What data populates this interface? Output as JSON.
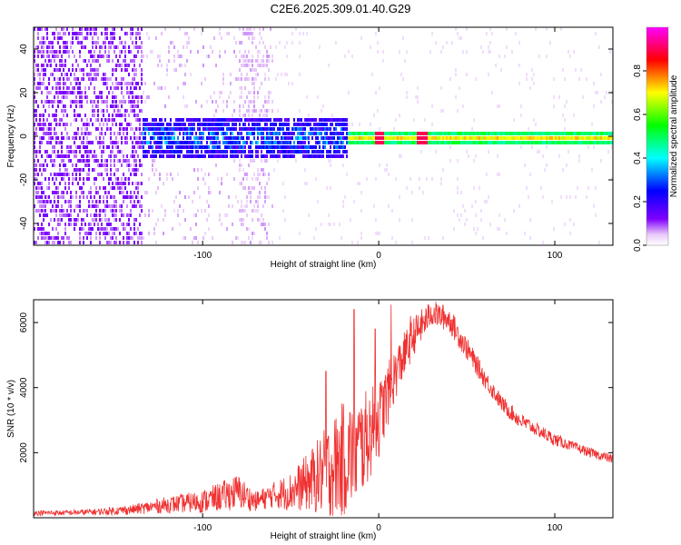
{
  "title": "C2E6.2025.309.01.40.G29",
  "chart_data": [
    {
      "type": "heatmap",
      "name": "spectrogram",
      "xlabel": "Height of straight line (km)",
      "ylabel": "Frequency (Hz)",
      "xlim": [
        -196,
        133
      ],
      "ylim": [
        -50,
        50
      ],
      "x_ticks": [
        -100,
        0,
        100
      ],
      "x_tick_labels": [
        "-100",
        "0",
        "100"
      ],
      "y_ticks": [
        -40,
        -20,
        0,
        20,
        40
      ],
      "y_tick_labels": [
        "-40",
        "-20",
        "0",
        "20",
        "40"
      ],
      "colorbar": {
        "label": "Normalized spectral amplitude",
        "range": [
          0,
          1
        ],
        "ticks": [
          0.0,
          0.2,
          0.4,
          0.6,
          0.8
        ],
        "tick_labels": [
          "0.0",
          "0.2",
          "0.4",
          "0.6",
          "0.8"
        ],
        "colors": [
          "#ffffff",
          "#e8c8f8",
          "#8000ff",
          "#0000ff",
          "#00ffff",
          "#00ff00",
          "#ffff00",
          "#ff0000",
          "#ff00ff"
        ]
      },
      "regions": [
        {
          "name": "scattered noise",
          "x_range": [
            -196,
            -135
          ],
          "freq_range": [
            -50,
            50
          ],
          "amplitude": 0.05
        },
        {
          "name": "weak scatter",
          "x_range": [
            -135,
            -60
          ],
          "freq_range": [
            -50,
            50
          ],
          "amplitude": 0.03
        },
        {
          "name": "broad band",
          "x_range": [
            -135,
            -20
          ],
          "freq_range": [
            -10,
            10
          ],
          "amplitude": 0.35
        },
        {
          "name": "narrow band",
          "x_range": [
            -20,
            133
          ],
          "freq_range": [
            -3,
            3
          ],
          "amplitude": 0.6
        }
      ]
    },
    {
      "type": "line",
      "name": "snr",
      "xlabel": "Height of straight line (km)",
      "ylabel": "SNR (10 * v/v)",
      "xlim": [
        -196,
        133
      ],
      "ylim": [
        0,
        6700
      ],
      "x_ticks": [
        -100,
        0,
        100
      ],
      "x_tick_labels": [
        "-100",
        "0",
        "100"
      ],
      "y_ticks": [
        2000,
        4000,
        6000
      ],
      "y_tick_labels": [
        "2000",
        "4000",
        "6000"
      ],
      "color": "#f03030",
      "series": [
        {
          "name": "SNR",
          "x": [
            -196,
            -180,
            -160,
            -140,
            -120,
            -100,
            -90,
            -80,
            -70,
            -60,
            -50,
            -40,
            -30,
            -20,
            -10,
            0,
            10,
            20,
            30,
            40,
            50,
            60,
            70,
            80,
            90,
            100,
            110,
            120,
            133
          ],
          "y": [
            150,
            150,
            180,
            250,
            400,
            500,
            650,
            800,
            500,
            700,
            800,
            1100,
            1400,
            1800,
            2200,
            3000,
            4500,
            5600,
            6300,
            6100,
            5200,
            4300,
            3500,
            3000,
            2700,
            2400,
            2200,
            2000,
            1800
          ],
          "noise_amplitude": [
            80,
            80,
            100,
            150,
            250,
            350,
            450,
            550,
            300,
            400,
            600,
            900,
            1400,
            1800,
            1600,
            1200,
            800,
            600,
            400,
            400,
            350,
            300,
            250,
            250,
            200,
            200,
            150,
            150,
            150
          ],
          "spikes": [
            {
              "x": -14,
              "y": 6400
            },
            {
              "x": -2,
              "y": 5800
            },
            {
              "x": 7,
              "y": 6550
            },
            {
              "x": 12,
              "y": 5200
            },
            {
              "x": 18,
              "y": 6200
            },
            {
              "x": -30,
              "y": 4500
            }
          ]
        }
      ]
    }
  ]
}
